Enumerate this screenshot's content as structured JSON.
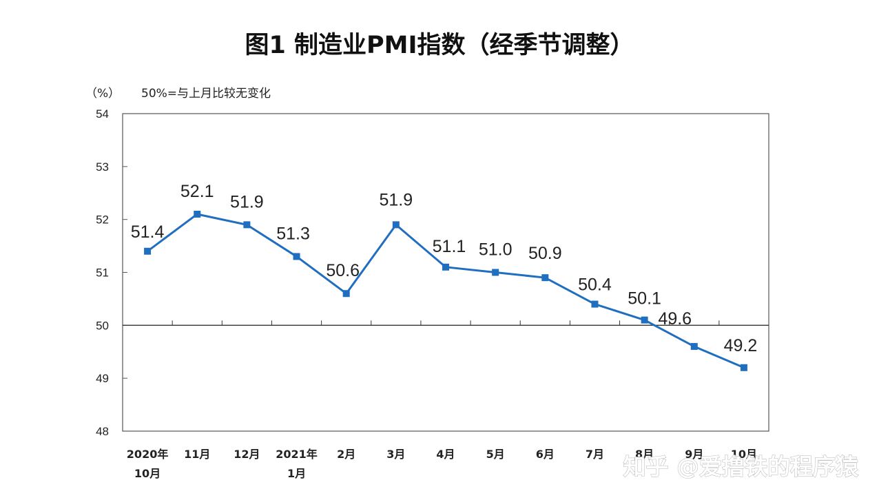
{
  "chart_data": {
    "type": "line",
    "title": "图1 制造业PMI指数（经季节调整）",
    "unit_label": "（%）",
    "note": "50%=与上月比较无变化",
    "categories": [
      [
        "2020年",
        "10月"
      ],
      [
        "11月"
      ],
      [
        "12月"
      ],
      [
        "2021年",
        "1月"
      ],
      [
        "2月"
      ],
      [
        "3月"
      ],
      [
        "4月"
      ],
      [
        "5月"
      ],
      [
        "6月"
      ],
      [
        "7月"
      ],
      [
        "8月"
      ],
      [
        "9月"
      ],
      [
        "10月"
      ]
    ],
    "series": [
      {
        "values": [
          51.4,
          52.1,
          51.9,
          51.3,
          50.6,
          51.9,
          51.1,
          51.0,
          50.9,
          50.4,
          50.1,
          49.6,
          49.2
        ],
        "labels": [
          "51.4",
          "52.1",
          "51.9",
          "51.3",
          "50.6",
          "51.9",
          "51.1",
          "51.0",
          "50.9",
          "50.4",
          "50.1",
          "49.6",
          "49.2"
        ]
      }
    ],
    "ylim": [
      48,
      54
    ],
    "yticks": [
      "48",
      "49",
      "50",
      "51",
      "52",
      "53",
      "54"
    ],
    "reference_line": 50,
    "line_color": "#1f6ebf",
    "grid": false
  },
  "watermark": "知乎 @爱撸铁的程序猿"
}
